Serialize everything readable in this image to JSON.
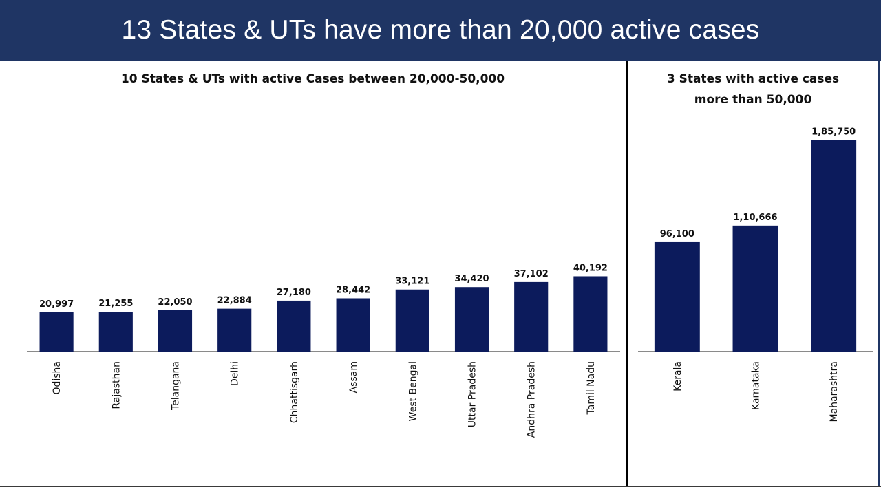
{
  "header": {
    "title": "13 States & UTs have more than 20,000 active cases"
  },
  "colors": {
    "header_bg": "#1f3564",
    "bar": "#0c1b5c"
  },
  "chart_data": [
    {
      "type": "bar",
      "title": "10 States & UTs with active Cases between 20,000-50,000",
      "categories": [
        "Odisha",
        "Rajasthan",
        "Telangana",
        "Delhi",
        "Chhattisgarh",
        "Assam",
        "West Bengal",
        "Uttar Pradesh",
        "Andhra Pradesh",
        "Tamil Nadu"
      ],
      "values": [
        20997,
        21255,
        22050,
        22884,
        27180,
        28442,
        33121,
        34420,
        37102,
        40192
      ],
      "value_labels": [
        "20,997",
        "21,255",
        "22,050",
        "22,884",
        "27,180",
        "28,442",
        "33,121",
        "34,420",
        "37,102",
        "40,192"
      ],
      "xlabel": "",
      "ylabel": "",
      "ylim": [
        0,
        120000
      ]
    },
    {
      "type": "bar",
      "title_lines": [
        "3 States with active cases",
        "more than 50,000"
      ],
      "categories": [
        "Kerala",
        "Karnataka",
        "Maharashtra"
      ],
      "values": [
        96100,
        110666,
        185750
      ],
      "value_labels": [
        "96,100",
        "1,10,666",
        "1,85,750"
      ],
      "xlabel": "",
      "ylabel": "",
      "ylim": [
        0,
        200000
      ]
    }
  ]
}
